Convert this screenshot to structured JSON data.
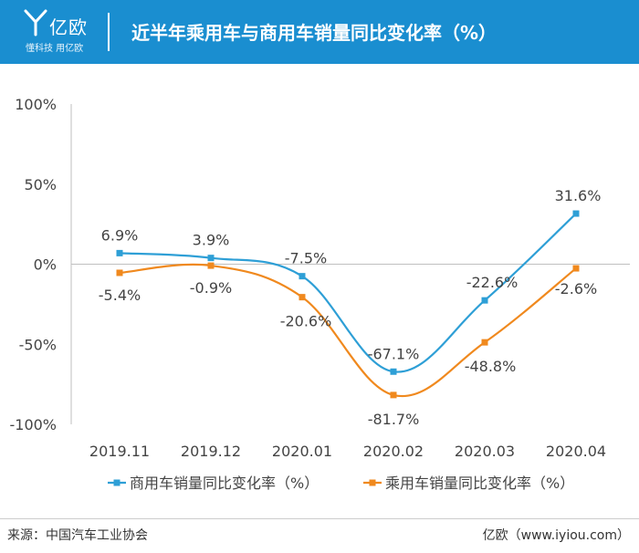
{
  "header": {
    "logo_name": "亿欧",
    "logo_slogan": "懂科技 用亿欧",
    "title": "近半年乘用车与商用车销量同比变化率（%）"
  },
  "chart_data": {
    "type": "line",
    "title": "近半年乘用车与商用车销量同比变化率（%）",
    "categories": [
      "2019.11",
      "2019.12",
      "2020.01",
      "2020.02",
      "2020.03",
      "2020.04"
    ],
    "ylim": [
      -100,
      100
    ],
    "y_ticks": [
      100,
      50,
      0,
      -50,
      -100
    ],
    "y_tick_labels": [
      "100%",
      "50%",
      "0%",
      "-50%",
      "-100%"
    ],
    "grid": false,
    "legend_position": "bottom",
    "series": [
      {
        "name": "商用车销量同比变化率（%）",
        "color": "#2e9fd6",
        "values": [
          6.9,
          3.9,
          -7.5,
          -67.1,
          -22.6,
          31.6
        ],
        "labels": [
          "6.9%",
          "3.9%",
          "-7.5%",
          "-67.1%",
          "-22.6%",
          "31.6%"
        ]
      },
      {
        "name": "乘用车销量同比变化率（%）",
        "color": "#f0891e",
        "values": [
          -5.4,
          -0.9,
          -20.6,
          -81.7,
          -48.8,
          -2.6
        ],
        "labels": [
          "-5.4%",
          "-0.9%",
          "-20.6%",
          "-81.7%",
          "-48.8%",
          "-2.6%"
        ]
      }
    ]
  },
  "footer": {
    "source": "来源：中国汽车工业协会",
    "credit": "亿欧（www.iyiou.com）"
  }
}
